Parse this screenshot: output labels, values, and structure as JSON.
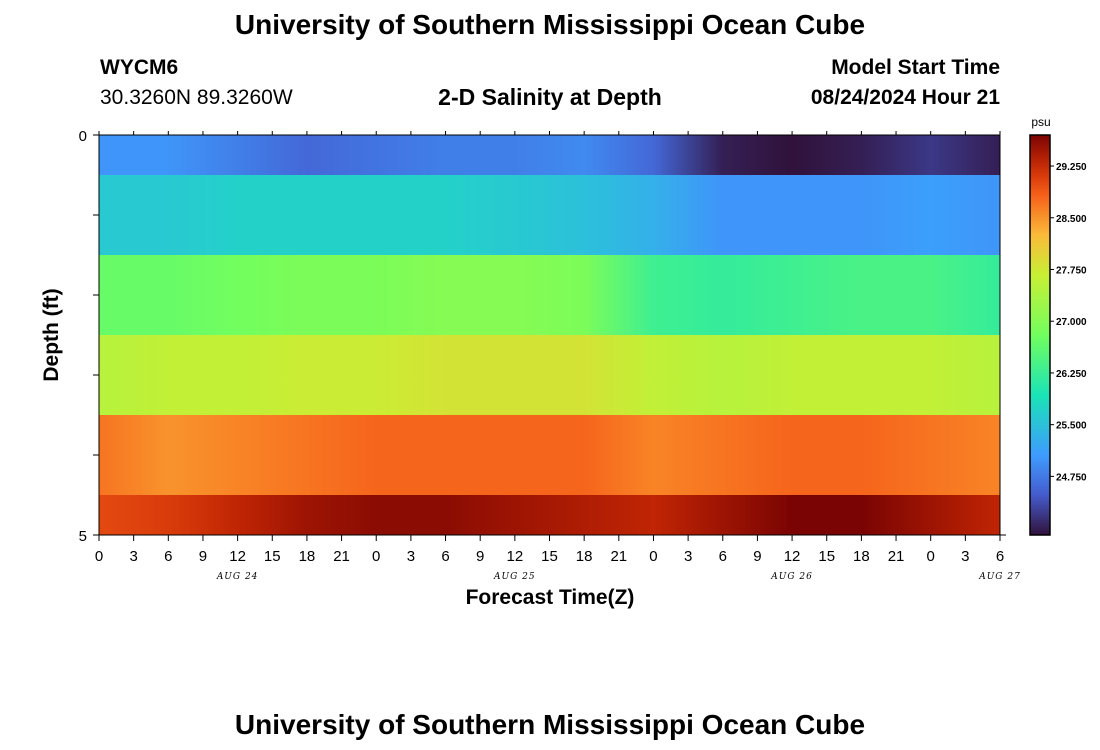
{
  "header": {
    "title": "University of Southern Mississippi Ocean Cube",
    "station": "WYCM6",
    "coords": "30.3260N  89.3260W",
    "subtitle": "2-D Salinity at Depth",
    "model_start_label": "Model Start Time",
    "model_start_value": "08/24/2024 Hour 21"
  },
  "footer": {
    "title": "University of Southern Mississippi Ocean Cube"
  },
  "chart_data": {
    "type": "heatmap",
    "title": "2-D Salinity at Depth",
    "xlabel": "Forecast Time(Z)",
    "ylabel": "Depth (ft)",
    "x_tick_labels": [
      "0",
      "3",
      "6",
      "9",
      "12",
      "15",
      "18",
      "21",
      "0",
      "3",
      "6",
      "9",
      "12",
      "15",
      "18",
      "21",
      "0",
      "3",
      "6",
      "9",
      "12",
      "15",
      "18",
      "21",
      "0",
      "3",
      "6"
    ],
    "x_day_labels": [
      {
        "label": "AUG 24",
        "hour": 12
      },
      {
        "label": "AUG 25",
        "hour": 36
      },
      {
        "label": "AUG 26",
        "hour": 60
      },
      {
        "label": "AUG 27",
        "hour": 78
      }
    ],
    "x_range_hours": [
      0,
      78
    ],
    "y_tick_labels": [
      "0",
      "5"
    ],
    "ylim": [
      0,
      5
    ],
    "layer_depth_ranges": [
      [
        0,
        0.5
      ],
      [
        0.5,
        1.5
      ],
      [
        1.5,
        2.5
      ],
      [
        2.5,
        3.5
      ],
      [
        3.5,
        4.5
      ],
      [
        4.5,
        5
      ]
    ],
    "colorbar": {
      "unit": "psu",
      "ticks": [
        "29.250",
        "28.500",
        "27.750",
        "27.000",
        "26.250",
        "25.500",
        "24.750"
      ],
      "range": [
        23.9,
        29.7
      ]
    },
    "sample_hours": [
      0,
      6,
      12,
      18,
      24,
      30,
      36,
      42,
      48,
      54,
      60,
      66,
      72,
      78
    ],
    "salinity": [
      [
        25.0,
        25.0,
        24.8,
        24.6,
        24.7,
        24.8,
        24.8,
        24.9,
        24.6,
        24.0,
        23.9,
        24.0,
        24.2,
        24.0
      ],
      [
        25.6,
        25.6,
        25.7,
        25.7,
        25.7,
        25.7,
        25.6,
        25.5,
        25.3,
        25.0,
        25.0,
        25.0,
        25.1,
        25.0
      ],
      [
        26.7,
        26.7,
        26.8,
        26.9,
        26.9,
        27.0,
        27.0,
        26.9,
        26.3,
        26.2,
        26.3,
        26.4,
        26.4,
        26.2
      ],
      [
        27.5,
        27.6,
        27.6,
        27.7,
        27.7,
        27.8,
        27.8,
        27.8,
        27.6,
        27.5,
        27.6,
        27.6,
        27.6,
        27.5
      ],
      [
        28.7,
        28.5,
        28.6,
        28.7,
        28.8,
        28.8,
        28.8,
        28.8,
        28.6,
        28.7,
        28.8,
        28.8,
        28.7,
        28.6
      ],
      [
        29.0,
        29.1,
        29.3,
        29.5,
        29.6,
        29.6,
        29.5,
        29.4,
        29.3,
        29.5,
        29.7,
        29.7,
        29.5,
        29.3
      ]
    ]
  }
}
